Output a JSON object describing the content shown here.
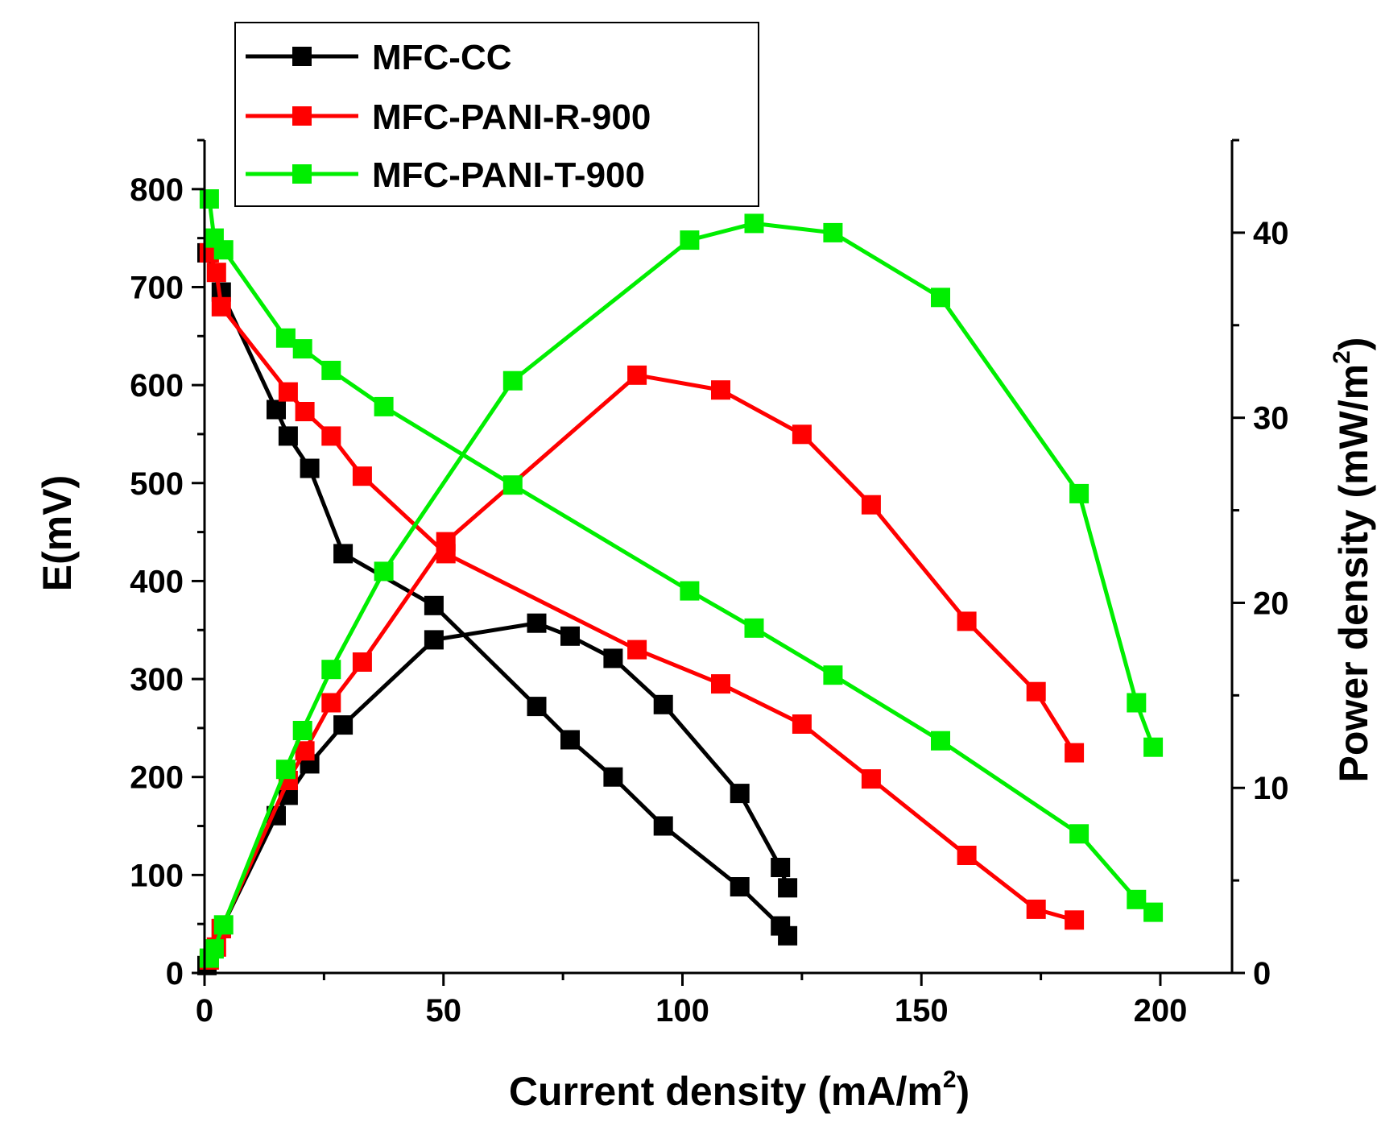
{
  "chart_data": {
    "type": "line",
    "xlabel_main": "Current density (mA/m",
    "xlabel_sup": "2",
    "xlabel_end": ")",
    "ylabel_left": "E(mV)",
    "ylabel_right_main": "Power density (mW/m",
    "ylabel_right_sup": "2",
    "ylabel_right_end": ")",
    "xlim": [
      0,
      215
    ],
    "ylim_left": [
      0,
      850
    ],
    "ylim_right": [
      0,
      45
    ],
    "x_ticks": [
      0,
      50,
      100,
      150,
      200
    ],
    "x_tick_labels": [
      "0",
      "50",
      "100",
      "150",
      "200"
    ],
    "y_left_ticks": [
      0,
      100,
      200,
      300,
      400,
      500,
      600,
      700,
      800
    ],
    "y_left_tick_labels": [
      "0",
      "100",
      "200",
      "300",
      "400",
      "500",
      "600",
      "700",
      "800"
    ],
    "y_right_ticks": [
      0,
      10,
      20,
      30,
      40
    ],
    "y_right_tick_labels": [
      "0",
      "10",
      "20",
      "30",
      "40"
    ],
    "legend": [
      "MFC-CC",
      "MFC-PANI-R-900",
      "MFC-PANI-T-900"
    ],
    "series": [
      {
        "name": "MFC-CC",
        "color": "#000000",
        "polarization": {
          "x": [
            0.5,
            3.5,
            15,
            17.5,
            22,
            29,
            48,
            69.5,
            76.5,
            85.5,
            96,
            112,
            120.5,
            122
          ],
          "y": [
            735,
            695,
            575,
            548,
            515,
            428,
            375,
            272,
            238,
            200,
            150,
            88,
            48,
            38
          ]
        },
        "power": {
          "x": [
            0.5,
            3.5,
            15,
            17.5,
            22,
            29,
            48,
            69.5,
            76.5,
            85.5,
            96,
            112,
            120.5,
            122
          ],
          "y": [
            0.4,
            2.4,
            8.5,
            9.6,
            11.3,
            13.4,
            18.0,
            18.9,
            18.2,
            17.0,
            14.5,
            9.7,
            5.7,
            4.6
          ]
        }
      },
      {
        "name": "MFC-PANI-R-900",
        "color": "#ff0000",
        "polarization": {
          "x": [
            1,
            2.5,
            3.5,
            17.5,
            21,
            26.5,
            33,
            50.5,
            90.5,
            108,
            125,
            139.5,
            159.5,
            174,
            182
          ],
          "y": [
            735,
            715,
            680,
            593,
            573,
            548,
            507,
            428,
            330,
            295,
            254,
            198,
            120,
            65,
            54
          ]
        },
        "power": {
          "x": [
            1,
            2.5,
            3.5,
            17.5,
            21,
            26.5,
            33,
            50.5,
            90.5,
            108,
            125,
            139.5,
            159.5,
            174,
            182
          ],
          "y": [
            0.7,
            1.4,
            2.4,
            10.4,
            12.0,
            14.6,
            16.8,
            23.3,
            32.3,
            31.5,
            29.1,
            25.3,
            19.0,
            15.2,
            11.9
          ]
        }
      },
      {
        "name": "MFC-PANI-T-900",
        "color": "#00ee00",
        "polarization": {
          "x": [
            1,
            2,
            4,
            17,
            20.5,
            26.5,
            37.5,
            64.5,
            101.5,
            115,
            131.5,
            154,
            183,
            195,
            198.5
          ],
          "y": [
            790,
            750,
            738,
            648,
            637,
            615,
            578,
            498,
            390,
            352,
            304,
            237,
            142,
            75,
            62
          ]
        },
        "power": {
          "x": [
            1,
            2,
            4,
            17,
            20.5,
            26.5,
            37.5,
            64.5,
            101.5,
            115,
            131.5,
            154,
            183,
            195,
            198.5
          ],
          "y": [
            0.8,
            1.3,
            2.6,
            11.0,
            13.1,
            16.4,
            21.7,
            32.0,
            39.6,
            40.5,
            40.0,
            36.5,
            25.9,
            14.6,
            12.2
          ]
        }
      }
    ]
  }
}
